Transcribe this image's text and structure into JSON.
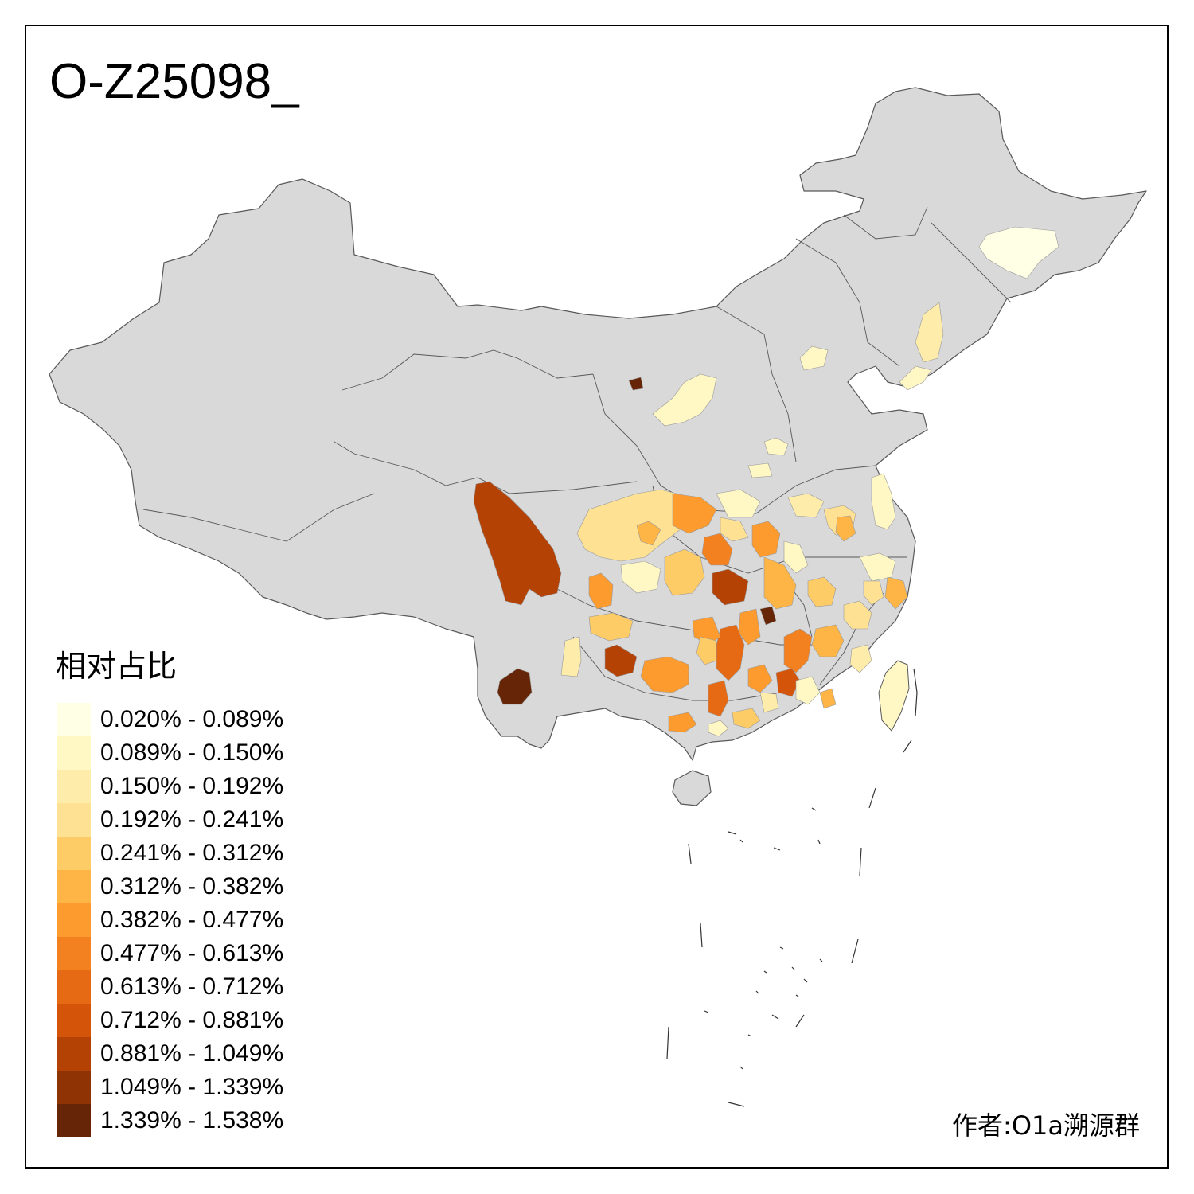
{
  "title": "O-Z25098_",
  "legend": {
    "title": "相对占比",
    "bins": [
      {
        "label": "0.020% - 0.089%",
        "color": "#ffffe5"
      },
      {
        "label": "0.089% - 0.150%",
        "color": "#fff7c4"
      },
      {
        "label": "0.150% - 0.192%",
        "color": "#feecab"
      },
      {
        "label": "0.192% - 0.241%",
        "color": "#fee192"
      },
      {
        "label": "0.241% - 0.312%",
        "color": "#fecc66"
      },
      {
        "label": "0.312% - 0.382%",
        "color": "#feb546"
      },
      {
        "label": "0.382% - 0.477%",
        "color": "#fd9b2e"
      },
      {
        "label": "0.477% - 0.613%",
        "color": "#f4811f"
      },
      {
        "label": "0.613% - 0.712%",
        "color": "#e66a13"
      },
      {
        "label": "0.712% - 0.881%",
        "color": "#d4540a"
      },
      {
        "label": "0.881% - 1.049%",
        "color": "#b44205"
      },
      {
        "label": "1.049% - 1.339%",
        "color": "#8f3305"
      },
      {
        "label": "1.339% - 1.538%",
        "color": "#662506"
      }
    ]
  },
  "credit": "作者:O1a溯源群",
  "colors": {
    "base_land": "#d9d9d9",
    "border": "#595959"
  }
}
